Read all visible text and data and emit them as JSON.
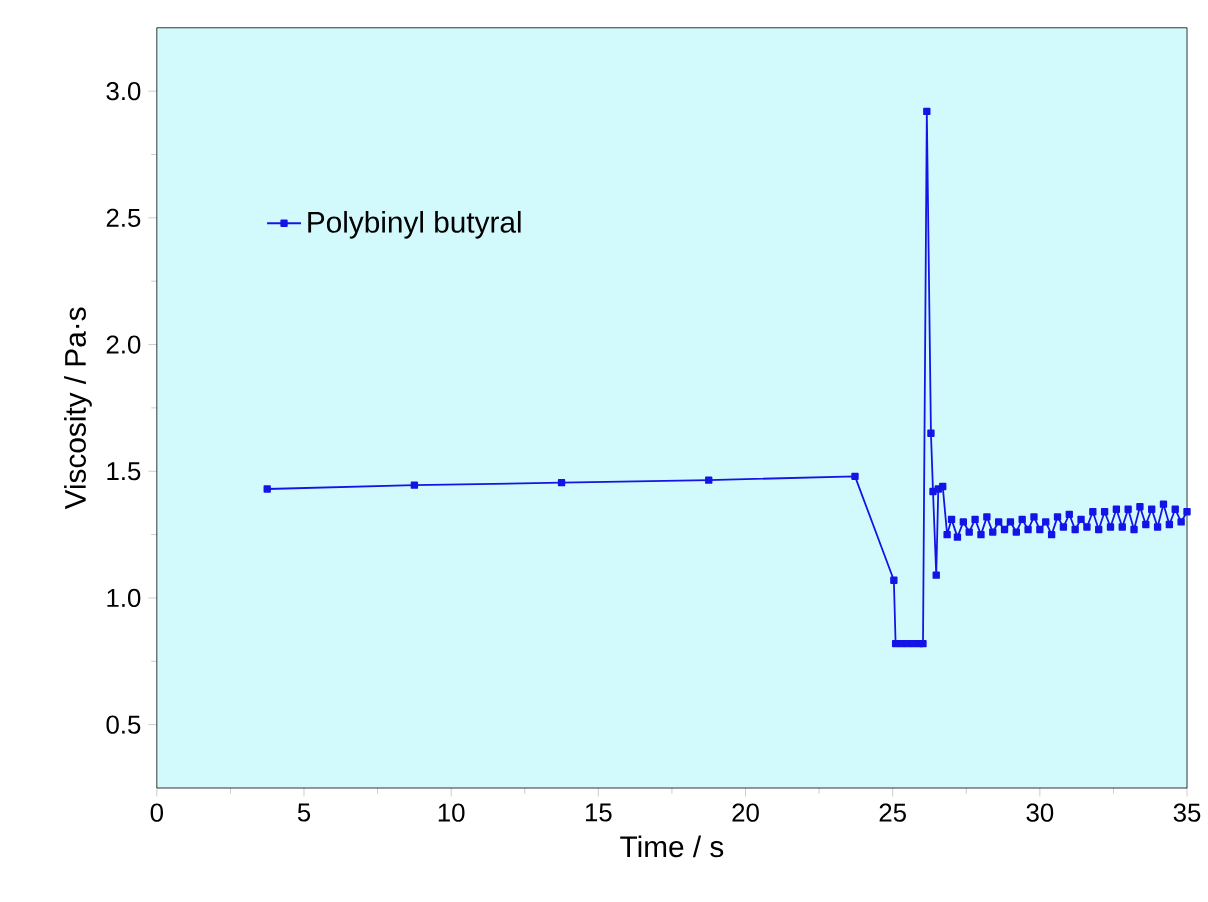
{
  "chart_data": {
    "type": "line",
    "xlabel": "Time / s",
    "ylabel": "Viscosity / Pa·s",
    "xlim": [
      0,
      35
    ],
    "ylim": [
      0.25,
      3.25
    ],
    "xticks": [
      0,
      5,
      10,
      15,
      20,
      25,
      30,
      35
    ],
    "yticks": [
      0.5,
      {
        "value": 1.0,
        "label": "1.0"
      },
      1.5,
      {
        "value": 2.0,
        "label": "2.0"
      },
      2.5,
      {
        "value": 3.0,
        "label": "3.0"
      }
    ],
    "legend": "top left",
    "marker": "square",
    "line_style": "solid",
    "grid": false,
    "series": [
      {
        "name": "Polybinyl butyral",
        "color": "#1414e6",
        "x": [
          3.75,
          8.75,
          13.75,
          18.75,
          23.72,
          25.04,
          25.1,
          25.3,
          25.5,
          25.7,
          25.9,
          26.03,
          26.16,
          26.3,
          26.37,
          26.48,
          26.55,
          26.7,
          26.85,
          27.0,
          27.2,
          27.4,
          27.6,
          27.8,
          28.0,
          28.2,
          28.4,
          28.6,
          28.8,
          29.0,
          29.2,
          29.4,
          29.6,
          29.8,
          30.0,
          30.2,
          30.4,
          30.6,
          30.8,
          31.0,
          31.2,
          31.4,
          31.6,
          31.8,
          32.0,
          32.2,
          32.4,
          32.6,
          32.8,
          33.0,
          33.2,
          33.4,
          33.6,
          33.8,
          34.0,
          34.2,
          34.4,
          34.6,
          34.8,
          35.0
        ],
        "values": [
          1.43,
          1.445,
          1.455,
          1.465,
          1.48,
          1.07,
          0.82,
          0.82,
          0.82,
          0.82,
          0.82,
          0.82,
          2.92,
          1.65,
          1.42,
          1.09,
          1.43,
          1.44,
          1.25,
          1.31,
          1.24,
          1.3,
          1.26,
          1.31,
          1.25,
          1.32,
          1.26,
          1.3,
          1.27,
          1.3,
          1.26,
          1.31,
          1.27,
          1.32,
          1.27,
          1.3,
          1.25,
          1.32,
          1.28,
          1.33,
          1.27,
          1.31,
          1.28,
          1.34,
          1.27,
          1.34,
          1.28,
          1.35,
          1.28,
          1.35,
          1.27,
          1.36,
          1.29,
          1.35,
          1.28,
          1.37,
          1.29,
          1.35,
          1.3,
          1.34
        ]
      }
    ]
  }
}
